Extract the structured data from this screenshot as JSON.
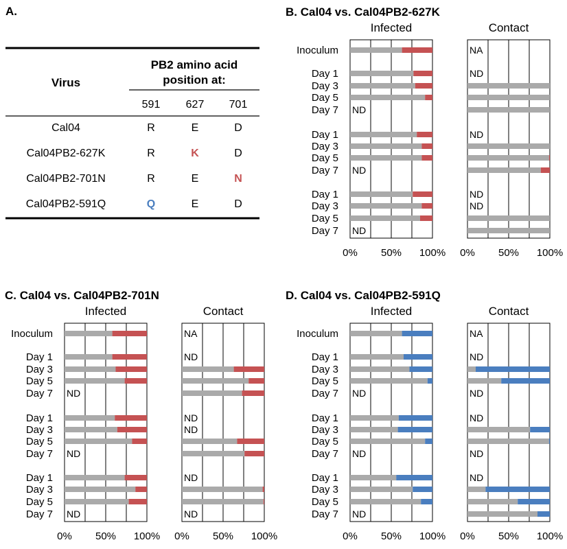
{
  "colors": {
    "gray": "#aaaaaa",
    "red": "#c55253",
    "blue": "#4a7ebf",
    "grid": "#000000"
  },
  "panel_a": {
    "label": "A.",
    "header_virus": "Virus",
    "header_pb2_line1": "PB2 amino acid",
    "header_pb2_line2": "position at:",
    "positions": [
      "591",
      "627",
      "701"
    ],
    "rows": [
      {
        "virus": "Cal04",
        "cells": [
          {
            "v": "R",
            "hl": ""
          },
          {
            "v": "E",
            "hl": ""
          },
          {
            "v": "D",
            "hl": ""
          }
        ]
      },
      {
        "virus": "Cal04PB2-627K",
        "cells": [
          {
            "v": "R",
            "hl": ""
          },
          {
            "v": "K",
            "hl": "red"
          },
          {
            "v": "D",
            "hl": ""
          }
        ]
      },
      {
        "virus": "Cal04PB2-701N",
        "cells": [
          {
            "v": "R",
            "hl": ""
          },
          {
            "v": "E",
            "hl": ""
          },
          {
            "v": "N",
            "hl": "red"
          }
        ]
      },
      {
        "virus": "Cal04PB2-591Q",
        "cells": [
          {
            "v": "Q",
            "hl": "blue"
          },
          {
            "v": "E",
            "hl": ""
          },
          {
            "v": "D",
            "hl": ""
          }
        ]
      }
    ]
  },
  "chart_data": [
    {
      "type": "bar",
      "panel": "B.",
      "title": "B. Cal04 vs. Cal04PB2-627K",
      "accent": "red",
      "row_labels": [
        "Inoculum",
        "Day 1",
        "Day 3",
        "Day 5",
        "Day 7",
        "Day 1",
        "Day 3",
        "Day 5",
        "Day 7",
        "Day 1",
        "Day 3",
        "Day 5",
        "Day 7"
      ],
      "groups": [
        {
          "name": "Infected",
          "rows": [
            63,
            77,
            79,
            91,
            "ND",
            81,
            87,
            87,
            "ND",
            76,
            87,
            85,
            "ND"
          ]
        },
        {
          "name": "Contact",
          "rows": [
            "NA",
            "ND",
            100,
            100,
            100,
            "ND",
            100,
            99,
            89,
            "ND",
            "ND",
            100,
            100
          ]
        }
      ],
      "x_ticks": [
        "0%",
        "50%",
        "100%"
      ],
      "xlim": [
        0,
        100
      ]
    },
    {
      "type": "bar",
      "panel": "C.",
      "title": "C. Cal04 vs. Cal04PB2-701N",
      "accent": "red",
      "row_labels": [
        "Inoculum",
        "Day 1",
        "Day 3",
        "Day 5",
        "Day 7",
        "Day 1",
        "Day 3",
        "Day 5",
        "Day 7",
        "Day 1",
        "Day 3",
        "Day 5",
        "Day 7"
      ],
      "groups": [
        {
          "name": "Infected",
          "rows": [
            58,
            58,
            62,
            73,
            "ND",
            61,
            64,
            82,
            "ND",
            73,
            86,
            78,
            "ND"
          ]
        },
        {
          "name": "Contact",
          "rows": [
            "NA",
            "ND",
            63,
            81,
            73,
            "ND",
            "ND",
            67,
            76,
            "ND",
            98,
            99,
            "ND"
          ]
        }
      ],
      "x_ticks": [
        "0%",
        "50%",
        "100%"
      ],
      "xlim": [
        0,
        100
      ]
    },
    {
      "type": "bar",
      "panel": "D.",
      "title": "D. Cal04 vs. Cal04PB2-591Q",
      "accent": "blue",
      "row_labels": [
        "Inoculum",
        "Day 1",
        "Day 3",
        "Day 5",
        "Day 7",
        "Day 1",
        "Day 3",
        "Day 5",
        "Day 7",
        "Day 1",
        "Day 3",
        "Day 5",
        "Day 7"
      ],
      "groups": [
        {
          "name": "Infected",
          "rows": [
            63,
            65,
            72,
            94,
            "ND",
            59,
            58,
            91,
            "ND",
            56,
            76,
            86,
            "ND"
          ]
        },
        {
          "name": "Contact",
          "rows": [
            "NA",
            "ND",
            10,
            41,
            "ND",
            "ND",
            76,
            99,
            "ND",
            "ND",
            22,
            61,
            85
          ]
        }
      ],
      "x_ticks": [
        "0%",
        "50%",
        "100%"
      ],
      "xlim": [
        0,
        100
      ]
    }
  ]
}
